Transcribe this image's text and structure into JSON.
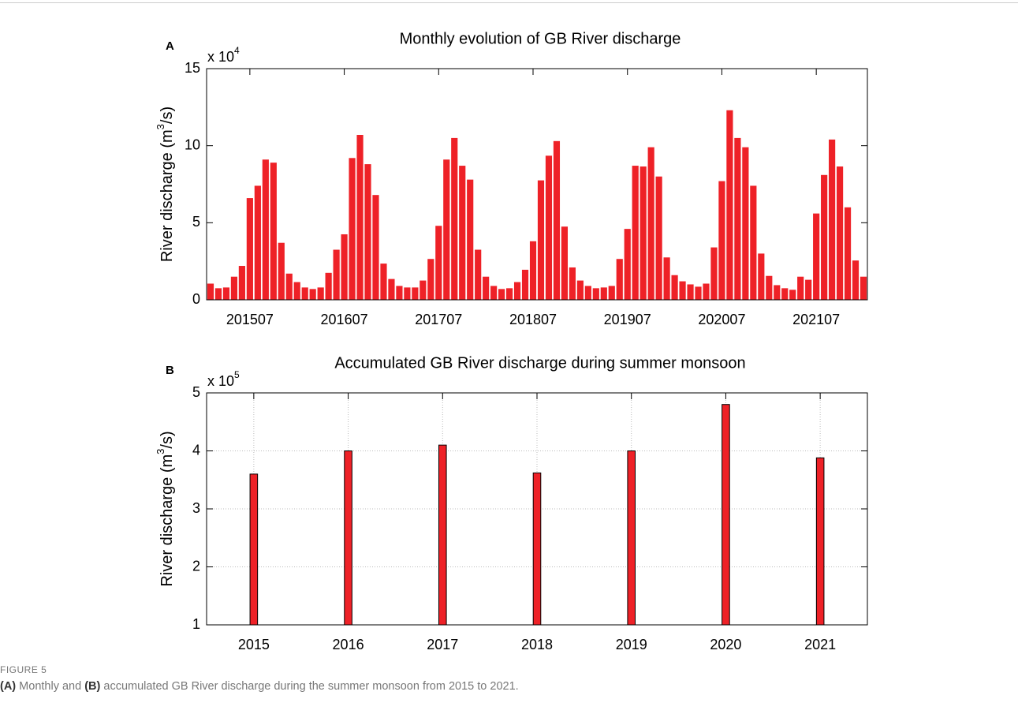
{
  "chart_data": [
    {
      "type": "bar",
      "panel_label": "A",
      "title": "Monthly evolution of GB River discharge",
      "y_multiplier": [
        "x 10",
        "4"
      ],
      "ylabel": [
        "River discharge (m",
        "3",
        "/s)"
      ],
      "categories": [
        null,
        null,
        null,
        null,
        null,
        "201507",
        null,
        null,
        null,
        null,
        null,
        null,
        null,
        null,
        null,
        null,
        null,
        "201607",
        null,
        null,
        null,
        null,
        null,
        null,
        null,
        null,
        null,
        null,
        null,
        "201707",
        null,
        null,
        null,
        null,
        null,
        null,
        null,
        null,
        null,
        null,
        null,
        "201807",
        null,
        null,
        null,
        null,
        null,
        null,
        null,
        null,
        null,
        null,
        null,
        "201907",
        null,
        null,
        null,
        null,
        null,
        null,
        null,
        null,
        null,
        null,
        null,
        "202007",
        null,
        null,
        null,
        null,
        null,
        null,
        null,
        null,
        null,
        null,
        null,
        "202107",
        null,
        null,
        null,
        null,
        null,
        null
      ],
      "values": [
        1.05,
        0.75,
        0.8,
        1.5,
        2.2,
        6.6,
        7.4,
        9.1,
        8.9,
        3.7,
        1.7,
        1.15,
        0.8,
        0.7,
        0.8,
        1.75,
        3.25,
        4.25,
        9.2,
        10.7,
        8.8,
        6.8,
        2.35,
        1.35,
        0.9,
        0.8,
        0.8,
        1.25,
        2.65,
        4.8,
        9.1,
        10.5,
        8.7,
        7.8,
        3.25,
        1.5,
        0.9,
        0.7,
        0.75,
        1.15,
        1.95,
        3.8,
        7.75,
        9.35,
        10.3,
        4.75,
        2.1,
        1.25,
        0.9,
        0.75,
        0.8,
        0.9,
        2.65,
        4.6,
        8.7,
        8.65,
        9.9,
        8.0,
        2.75,
        1.6,
        1.2,
        1.0,
        0.85,
        1.05,
        3.4,
        7.7,
        12.3,
        10.5,
        9.9,
        7.4,
        3.0,
        1.55,
        0.95,
        0.75,
        0.65,
        1.5,
        1.3,
        5.6,
        8.1,
        10.4,
        8.65,
        6.0,
        2.55,
        1.5
      ],
      "color": "#ee2127",
      "ylim": [
        0,
        15
      ],
      "yticks": [
        0,
        5,
        10,
        15
      ],
      "grid": false
    },
    {
      "type": "bar",
      "panel_label": "B",
      "title": "Accumulated GB River discharge during summer monsoon",
      "y_multiplier": [
        "x 10",
        "5"
      ],
      "ylabel": [
        "River discharge (m",
        "3",
        "/s)"
      ],
      "categories": [
        "2015",
        "2016",
        "2017",
        "2018",
        "2019",
        "2020",
        "2021"
      ],
      "values": [
        3.6,
        4.0,
        4.1,
        3.62,
        4.0,
        4.8,
        3.88
      ],
      "color": "#ee2127",
      "edgecolor": "#000000",
      "ylim": [
        1,
        5
      ],
      "yticks": [
        1,
        2,
        3,
        4,
        5
      ],
      "grid": true
    }
  ],
  "figure_label": "FIGURE 5",
  "caption": [
    {
      "text": "(A)",
      "bold": true
    },
    {
      "text": "Monthly and"
    },
    {
      "text": "(B)",
      "bold": true
    },
    {
      "text": "accumulated GB River discharge during the summer monsoon from 2015 to 2021."
    }
  ]
}
